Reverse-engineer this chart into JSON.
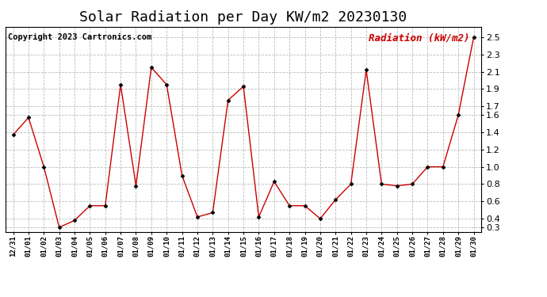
{
  "title": "Solar Radiation per Day KW/m2 20230130",
  "copyright_text": "Copyright 2023 Cartronics.com",
  "legend_label": "Radiation (kW/m2)",
  "dates": [
    "12/31",
    "01/01",
    "01/02",
    "01/03",
    "01/04",
    "01/05",
    "01/06",
    "01/07",
    "01/08",
    "01/09",
    "01/10",
    "01/11",
    "01/12",
    "01/13",
    "01/14",
    "01/15",
    "01/16",
    "01/17",
    "01/18",
    "01/19",
    "01/20",
    "01/21",
    "01/22",
    "01/23",
    "01/24",
    "01/25",
    "01/26",
    "01/27",
    "01/28",
    "01/29",
    "01/30"
  ],
  "values": [
    1.37,
    1.57,
    1.0,
    0.3,
    0.38,
    0.55,
    0.55,
    1.95,
    0.78,
    2.15,
    1.95,
    0.9,
    0.42,
    0.47,
    1.77,
    1.93,
    0.42,
    0.83,
    0.55,
    0.55,
    0.4,
    0.62,
    0.8,
    2.12,
    0.8,
    0.78,
    0.8,
    1.0,
    1.0,
    1.6,
    2.5
  ],
  "line_color": "#cc0000",
  "marker_color": "#000000",
  "bg_color": "#ffffff",
  "grid_color": "#bbbbbb",
  "title_fontsize": 13,
  "copyright_fontsize": 7.5,
  "legend_fontsize": 9,
  "ylabel_right_color": "#cc0000",
  "ylim_min": 0.25,
  "ylim_max": 2.62,
  "yticks": [
    0.3,
    0.4,
    0.6,
    0.8,
    1.0,
    1.2,
    1.4,
    1.6,
    1.7,
    1.9,
    2.1,
    2.3,
    2.5
  ]
}
